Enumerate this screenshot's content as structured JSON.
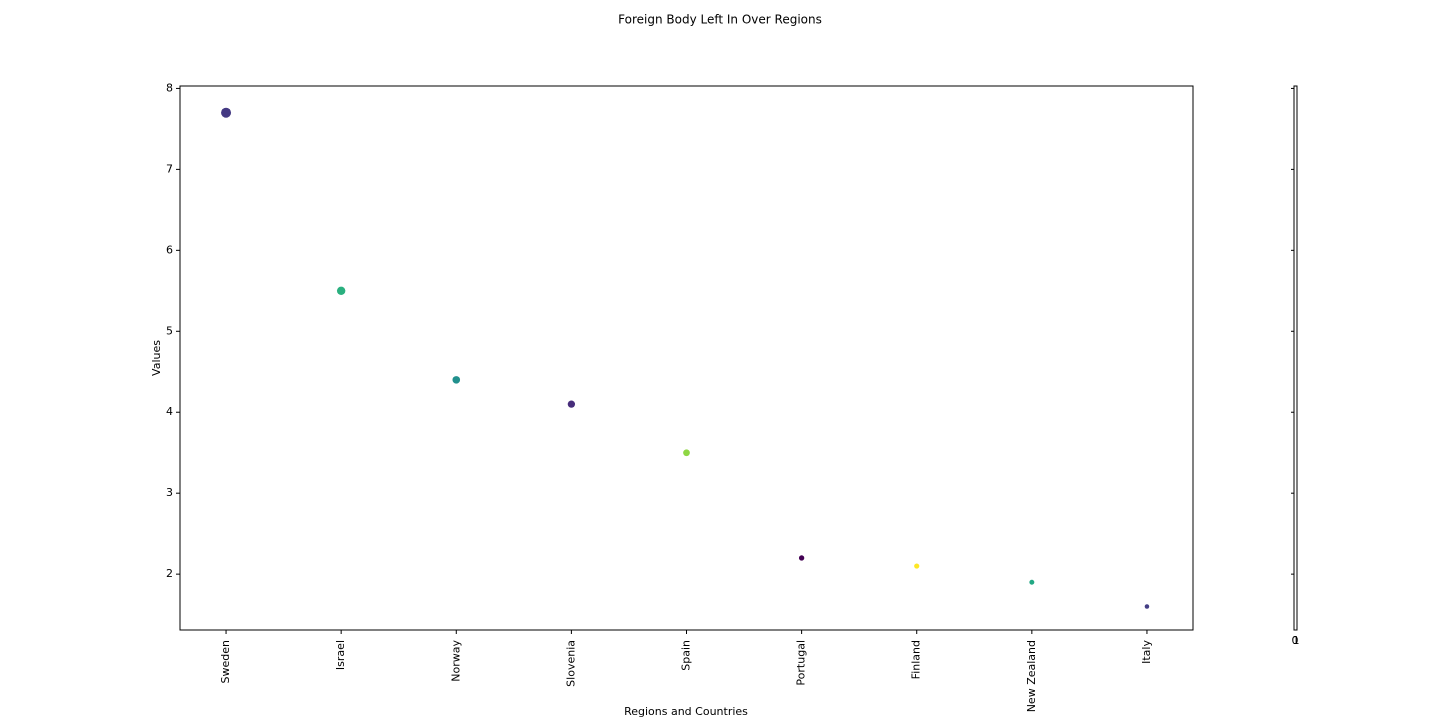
{
  "chart_data": {
    "type": "scatter",
    "title": "Foreign Body Left In Over Regions",
    "x_label": "Regions and Countries",
    "y_label": "Values",
    "categories": [
      "Sweden",
      "Israel",
      "Norway",
      "Slovenia",
      "Spain",
      "Portugal",
      "Finland",
      "New Zealand",
      "Italy"
    ],
    "values": [
      7.7,
      5.5,
      4.4,
      4.1,
      3.5,
      2.2,
      2.1,
      1.9,
      1.6
    ],
    "colors": [
      "#443983",
      "#2ab07f",
      "#21908d",
      "#472d7b",
      "#8fd744",
      "#440154",
      "#fde725",
      "#22a884",
      "#433e85"
    ],
    "ylim": [
      1.31,
      8.03
    ],
    "yticks": [
      2,
      3,
      4,
      5,
      6,
      7,
      8
    ],
    "colorbar_ticks": [
      0,
      1
    ]
  }
}
